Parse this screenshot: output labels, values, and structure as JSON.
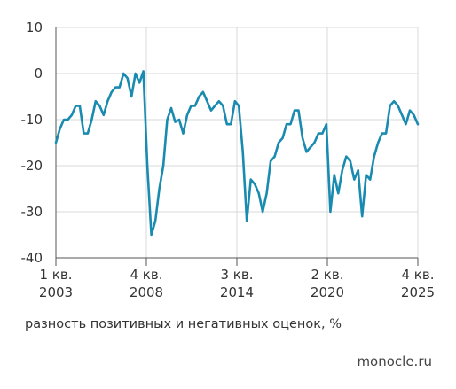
{
  "chart_data": {
    "type": "line",
    "ylabel": "разность позитивных и негативных оценок, %",
    "ylim": [
      -40,
      10
    ],
    "yticks": [
      10,
      0,
      -10,
      -20,
      -30,
      -40
    ],
    "xticks": [
      {
        "line1": "1 кв.",
        "line2": "2003"
      },
      {
        "line1": "4 кв.",
        "line2": "2008"
      },
      {
        "line1": "3 кв.",
        "line2": "2014"
      },
      {
        "line1": "2 кв.",
        "line2": "2020"
      },
      {
        "line1": "4 кв.",
        "line2": "2025"
      }
    ],
    "grid": true,
    "line_color": "#1a8bb0",
    "series": [
      {
        "values": [
          -15,
          -12,
          -10,
          -10,
          -9,
          -7,
          -7,
          -13,
          -13,
          -10,
          -6,
          -7,
          -9,
          -6,
          -4,
          -3,
          -3,
          0,
          -1,
          -5,
          0,
          -2,
          0.5,
          -20,
          -35,
          -32,
          -25,
          -20,
          -10,
          -7.5,
          -10.5,
          -10,
          -13,
          -9,
          -7,
          -7,
          -5,
          -4,
          -6,
          -8,
          -7,
          -6,
          -7,
          -11,
          -11,
          -6,
          -7,
          -17,
          -32,
          -23,
          -24,
          -26,
          -30,
          -26,
          -19,
          -18,
          -15,
          -14,
          -11,
          -11,
          -8,
          -8,
          -14,
          -17,
          -16,
          -15,
          -13,
          -13,
          -11,
          -30,
          -22,
          -26,
          -21,
          -18,
          -19,
          -23,
          -21,
          -31,
          -22,
          -23,
          -18,
          -15,
          -13,
          -13,
          -7,
          -6,
          -7,
          -9,
          -11,
          -8,
          -9,
          -11
        ]
      }
    ]
  },
  "caption": "разность позитивных и негативных оценок, %",
  "source": "monocle.ru"
}
